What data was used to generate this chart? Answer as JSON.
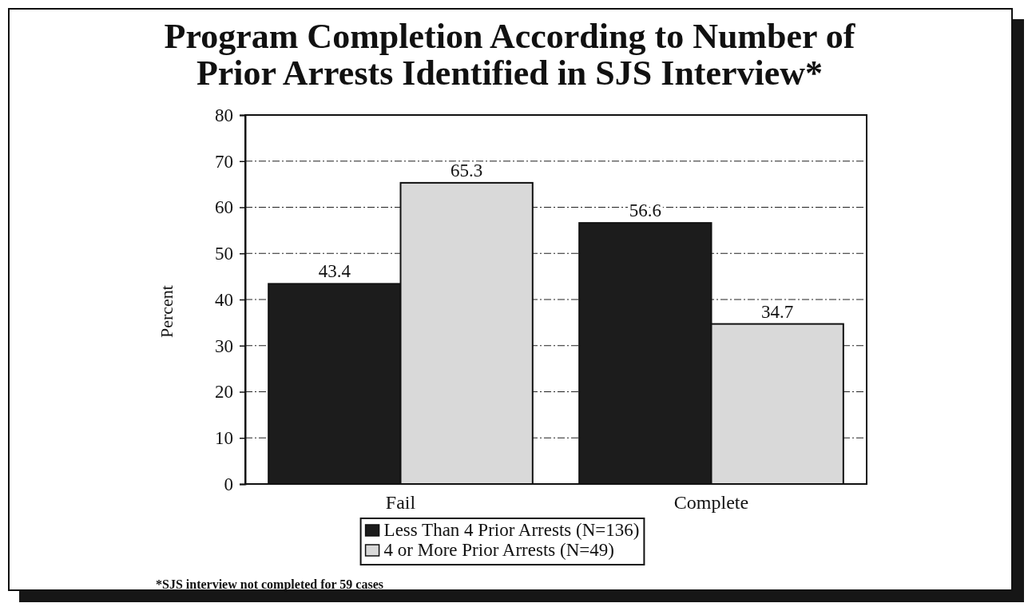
{
  "chart_data": {
    "type": "bar",
    "title": "Program Completion According to Number of Prior Arrests Identified in SJS Interview*",
    "ylabel": "Percent",
    "categories": [
      "Fail",
      "Complete"
    ],
    "series": [
      {
        "name": "Less Than 4 Prior Arrests (N=136)",
        "color": "#1c1c1c",
        "values": [
          43.4,
          56.6
        ]
      },
      {
        "name": "4 or More Prior Arrests (N=49)",
        "color": "#d9d9d9",
        "values": [
          65.3,
          34.7
        ]
      }
    ],
    "ylim": [
      0,
      80
    ],
    "yticks": [
      0,
      10,
      20,
      30,
      40,
      50,
      60,
      70,
      80
    ],
    "grid": "y",
    "legend": "bottom",
    "data_labels": true,
    "annotations": [
      "*SJS interview not completed for 59 cases"
    ]
  }
}
